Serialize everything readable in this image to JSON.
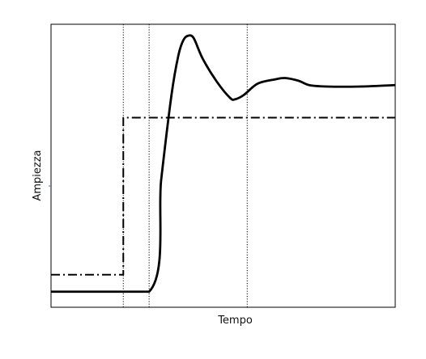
{
  "chart_data": {
    "type": "line",
    "title": "",
    "xlabel": "Tempo",
    "ylabel": "Ampiezza",
    "xlim": [
      0,
      100
    ],
    "ylim": [
      0,
      100
    ],
    "grid": false,
    "legend": "none",
    "vertical_markers": [
      21,
      28.5,
      57
    ],
    "series": [
      {
        "style": "dash-dot",
        "color": "#000000",
        "points": [
          [
            0,
            11.5
          ],
          [
            21,
            11.5
          ],
          [
            21,
            67
          ],
          [
            100,
            67
          ]
        ]
      },
      {
        "style": "solid",
        "color": "#000000",
        "points": [
          [
            0,
            5.5
          ],
          [
            28.5,
            5.5
          ],
          [
            32,
            45
          ],
          [
            35,
            75
          ],
          [
            37,
            89
          ],
          [
            38.5,
            94.5
          ],
          [
            40,
            96
          ],
          [
            41.5,
            95
          ],
          [
            44,
            88
          ],
          [
            48,
            80
          ],
          [
            52,
            74
          ],
          [
            53.5,
            73.5
          ],
          [
            56,
            75
          ],
          [
            60,
            79
          ],
          [
            65,
            80.5
          ],
          [
            68,
            81
          ],
          [
            72,
            80
          ],
          [
            75,
            78.5
          ],
          [
            80,
            78
          ],
          [
            90,
            78
          ],
          [
            100,
            78.5
          ]
        ]
      }
    ]
  }
}
